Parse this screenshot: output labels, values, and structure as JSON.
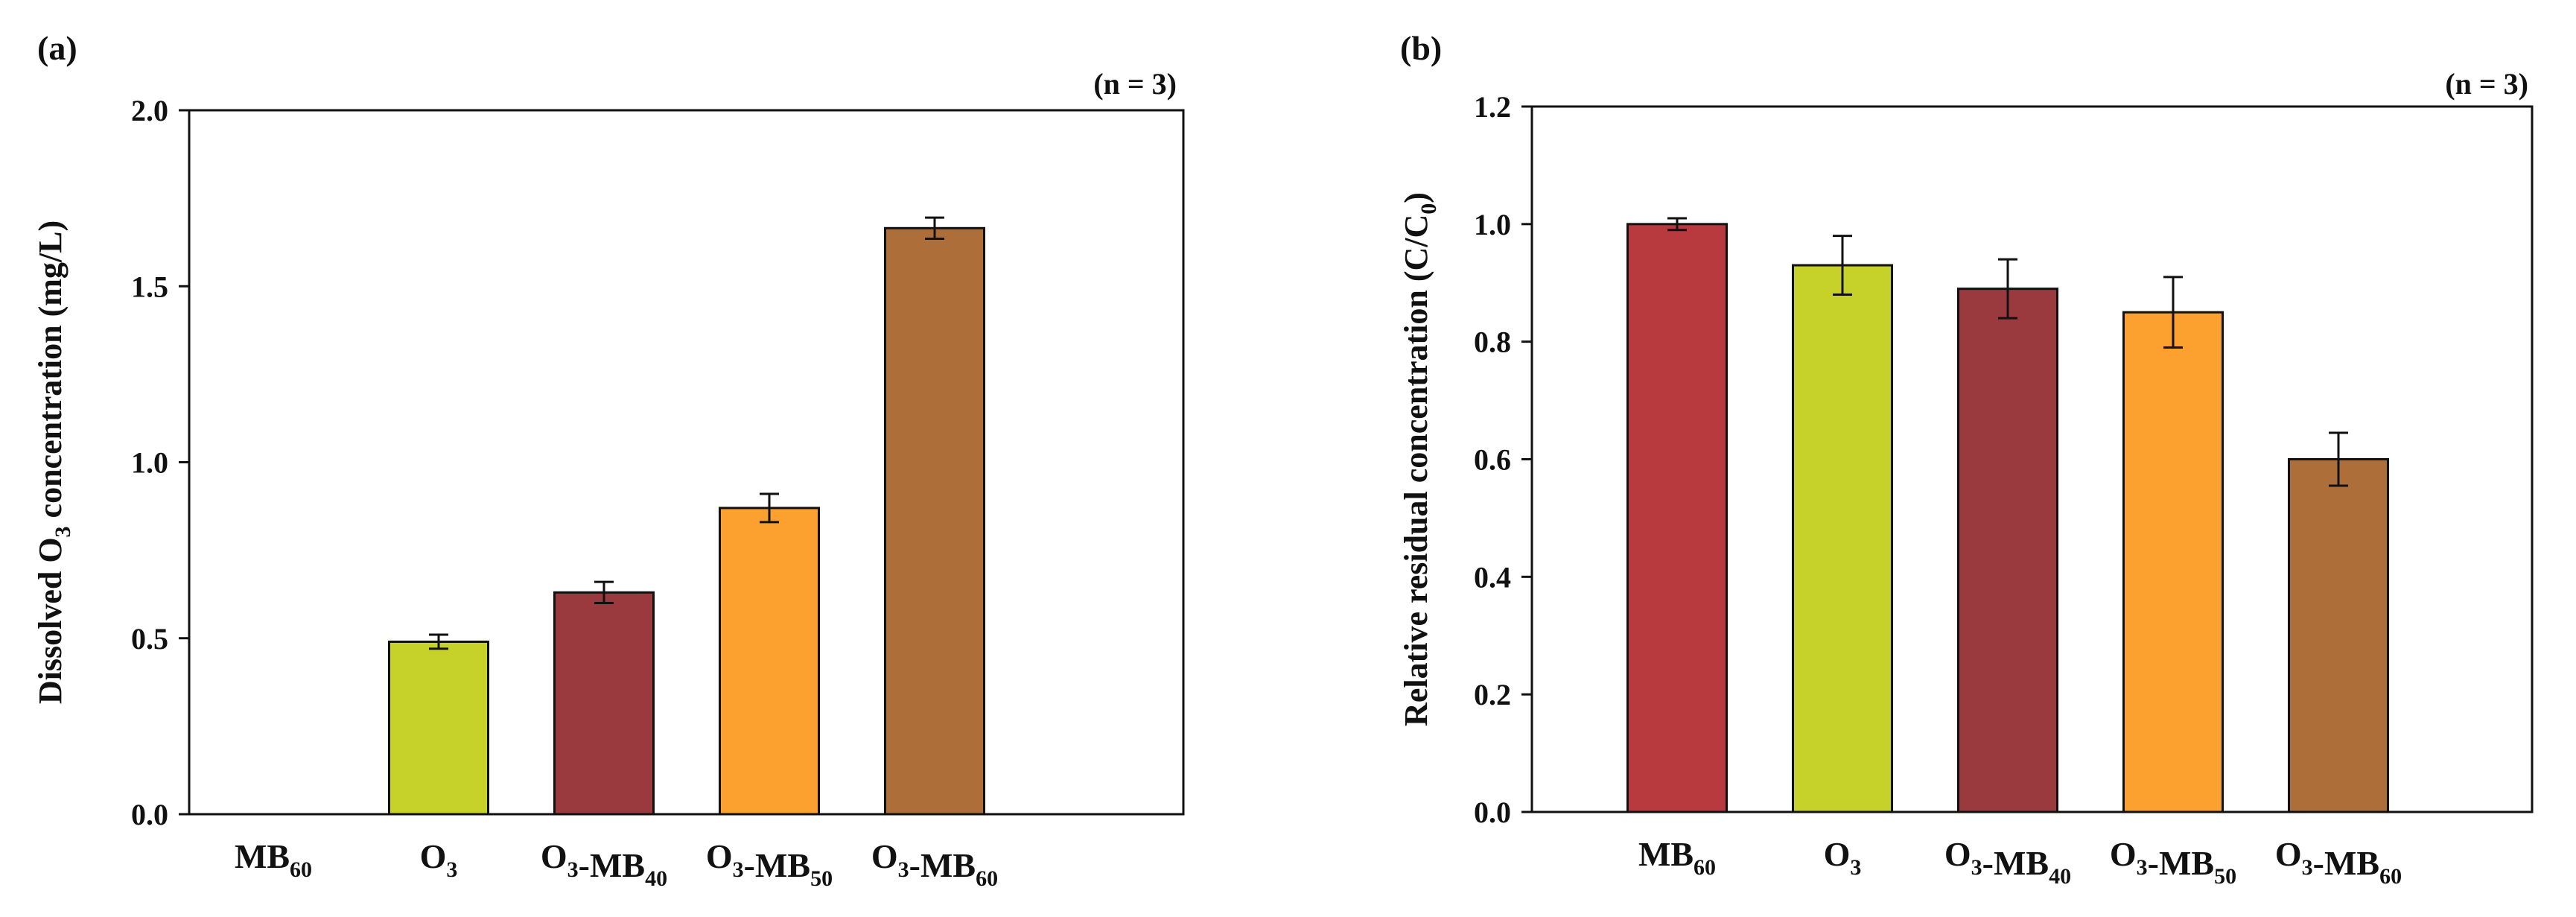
{
  "chart_data": [
    {
      "type": "bar",
      "panel_label": "(a)",
      "annotation": "(n = 3)",
      "ylabel": {
        "main": "Dissolved O",
        "sub": "3",
        "rest": " concentration (mg/L)"
      },
      "ylim": [
        0,
        2.0
      ],
      "yticks": [
        {
          "value": 0.0,
          "label": "0.0"
        },
        {
          "value": 0.5,
          "label": "0.5"
        },
        {
          "value": 1.0,
          "label": "1.0"
        },
        {
          "value": 1.5,
          "label": "1.5"
        },
        {
          "value": 2.0,
          "label": "2.0"
        }
      ],
      "categories": [
        {
          "parts": [
            [
              "MB",
              ""
            ],
            [
              "60",
              "sub"
            ]
          ]
        },
        {
          "parts": [
            [
              "O",
              ""
            ],
            [
              "3",
              "sub"
            ]
          ]
        },
        {
          "parts": [
            [
              "O",
              ""
            ],
            [
              "3",
              "sub"
            ],
            [
              "-MB",
              ""
            ],
            [
              "40",
              "sub"
            ]
          ]
        },
        {
          "parts": [
            [
              "O",
              ""
            ],
            [
              "3",
              "sub"
            ],
            [
              "-MB",
              ""
            ],
            [
              "50",
              "sub"
            ]
          ]
        },
        {
          "parts": [
            [
              "O",
              ""
            ],
            [
              "3",
              "sub"
            ],
            [
              "-MB",
              ""
            ],
            [
              "60",
              "sub"
            ]
          ]
        }
      ],
      "values": [
        null,
        0.49,
        0.63,
        0.87,
        1.665
      ],
      "errors": [
        null,
        0.02,
        0.03,
        0.04,
        0.03
      ],
      "colors": [
        "#B83A3E",
        "#C6D22A",
        "#9A3A3F",
        "#FCA030",
        "#AE6E3A"
      ]
    },
    {
      "type": "bar",
      "panel_label": "(b)",
      "annotation": "(n = 3)",
      "ylabel": {
        "main": "Relative residual concentration (C/C",
        "sub": "0",
        "rest": ")"
      },
      "ylim": [
        0,
        1.2
      ],
      "yticks": [
        {
          "value": 0.0,
          "label": "0.0"
        },
        {
          "value": 0.2,
          "label": "0.2"
        },
        {
          "value": 0.4,
          "label": "0.4"
        },
        {
          "value": 0.6,
          "label": "0.6"
        },
        {
          "value": 0.8,
          "label": "0.8"
        },
        {
          "value": 1.0,
          "label": "1.0"
        },
        {
          "value": 1.2,
          "label": "1.2"
        }
      ],
      "categories": [
        {
          "parts": [
            [
              "MB",
              ""
            ],
            [
              "60",
              "sub"
            ]
          ]
        },
        {
          "parts": [
            [
              "O",
              ""
            ],
            [
              "3",
              "sub"
            ]
          ]
        },
        {
          "parts": [
            [
              "O",
              ""
            ],
            [
              "3",
              "sub"
            ],
            [
              "-MB",
              ""
            ],
            [
              "40",
              "sub"
            ]
          ]
        },
        {
          "parts": [
            [
              "O",
              ""
            ],
            [
              "3",
              "sub"
            ],
            [
              "-MB",
              ""
            ],
            [
              "50",
              "sub"
            ]
          ]
        },
        {
          "parts": [
            [
              "O",
              ""
            ],
            [
              "3",
              "sub"
            ],
            [
              "-MB",
              ""
            ],
            [
              "60",
              "sub"
            ]
          ]
        }
      ],
      "values": [
        1.0,
        0.93,
        0.89,
        0.85,
        0.6
      ],
      "errors": [
        0.01,
        0.05,
        0.05,
        0.06,
        0.045
      ],
      "colors": [
        "#B83A3E",
        "#C6D22A",
        "#9A3A3F",
        "#FCA030",
        "#AE6E3A"
      ]
    }
  ]
}
